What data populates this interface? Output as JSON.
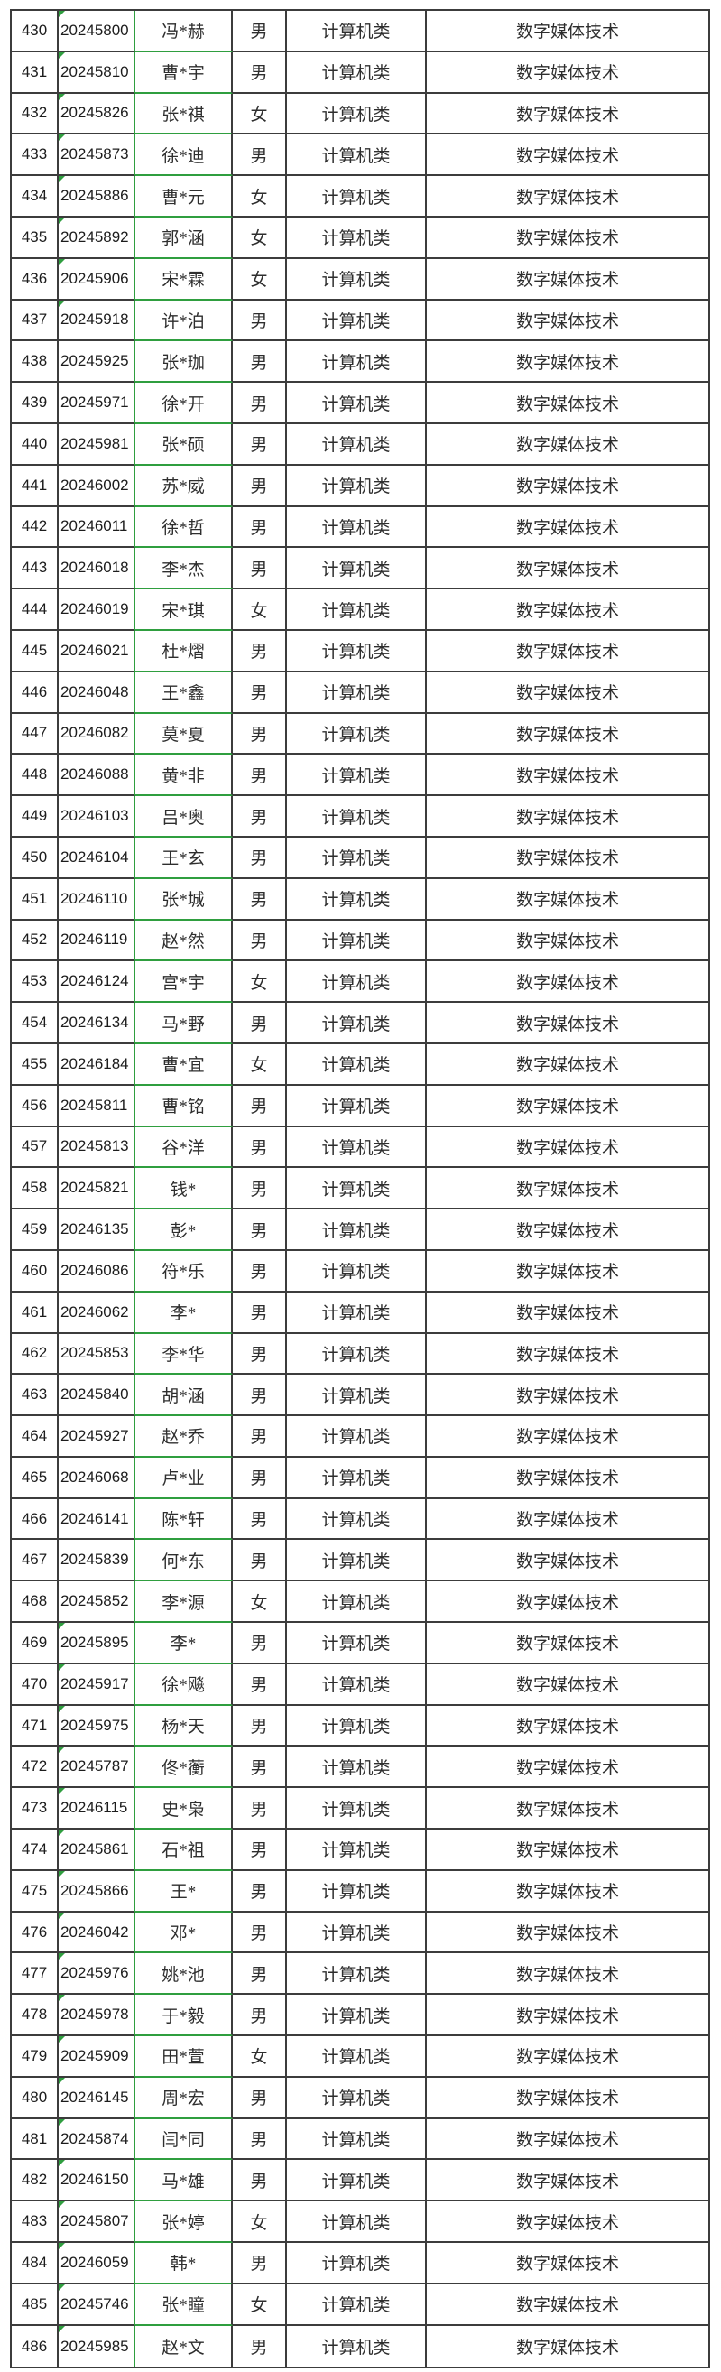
{
  "colors": {
    "grid_line": "#3c3c3c",
    "accent_green": "#2f9e3f",
    "number_text": "#1c1c1c",
    "cjk_text": "#2e2e2e",
    "background": "#ffffff"
  },
  "table": {
    "category_value": "计算机类",
    "major_value": "数字媒体技术",
    "rows": [
      {
        "no": "430",
        "id": "20245800",
        "name": "冯*赫",
        "gender": "男",
        "category": "计算机类",
        "major": "数字媒体技术",
        "id_flag": true
      },
      {
        "no": "431",
        "id": "20245810",
        "name": "曹*宇",
        "gender": "男",
        "category": "计算机类",
        "major": "数字媒体技术",
        "id_flag": true
      },
      {
        "no": "432",
        "id": "20245826",
        "name": "张*祺",
        "gender": "女",
        "category": "计算机类",
        "major": "数字媒体技术",
        "id_flag": true
      },
      {
        "no": "433",
        "id": "20245873",
        "name": "徐*迪",
        "gender": "男",
        "category": "计算机类",
        "major": "数字媒体技术",
        "id_flag": true
      },
      {
        "no": "434",
        "id": "20245886",
        "name": "曹*元",
        "gender": "女",
        "category": "计算机类",
        "major": "数字媒体技术",
        "id_flag": true
      },
      {
        "no": "435",
        "id": "20245892",
        "name": "郭*涵",
        "gender": "女",
        "category": "计算机类",
        "major": "数字媒体技术",
        "id_flag": true
      },
      {
        "no": "436",
        "id": "20245906",
        "name": "宋*霖",
        "gender": "女",
        "category": "计算机类",
        "major": "数字媒体技术",
        "id_flag": true
      },
      {
        "no": "437",
        "id": "20245918",
        "name": "许*泊",
        "gender": "男",
        "category": "计算机类",
        "major": "数字媒体技术",
        "id_flag": true
      },
      {
        "no": "438",
        "id": "20245925",
        "name": "张*珈",
        "gender": "男",
        "category": "计算机类",
        "major": "数字媒体技术",
        "id_flag": false
      },
      {
        "no": "439",
        "id": "20245971",
        "name": "徐*开",
        "gender": "男",
        "category": "计算机类",
        "major": "数字媒体技术",
        "id_flag": false
      },
      {
        "no": "440",
        "id": "20245981",
        "name": "张*硕",
        "gender": "男",
        "category": "计算机类",
        "major": "数字媒体技术",
        "id_flag": false
      },
      {
        "no": "441",
        "id": "20246002",
        "name": "苏*威",
        "gender": "男",
        "category": "计算机类",
        "major": "数字媒体技术",
        "id_flag": false
      },
      {
        "no": "442",
        "id": "20246011",
        "name": "徐*哲",
        "gender": "男",
        "category": "计算机类",
        "major": "数字媒体技术",
        "id_flag": false
      },
      {
        "no": "443",
        "id": "20246018",
        "name": "李*杰",
        "gender": "男",
        "category": "计算机类",
        "major": "数字媒体技术",
        "id_flag": false
      },
      {
        "no": "444",
        "id": "20246019",
        "name": "宋*琪",
        "gender": "女",
        "category": "计算机类",
        "major": "数字媒体技术",
        "id_flag": false
      },
      {
        "no": "445",
        "id": "20246021",
        "name": "杜*熠",
        "gender": "男",
        "category": "计算机类",
        "major": "数字媒体技术",
        "id_flag": false
      },
      {
        "no": "446",
        "id": "20246048",
        "name": "王*鑫",
        "gender": "男",
        "category": "计算机类",
        "major": "数字媒体技术",
        "id_flag": false
      },
      {
        "no": "447",
        "id": "20246082",
        "name": "莫*夏",
        "gender": "男",
        "category": "计算机类",
        "major": "数字媒体技术",
        "id_flag": false
      },
      {
        "no": "448",
        "id": "20246088",
        "name": "黄*非",
        "gender": "男",
        "category": "计算机类",
        "major": "数字媒体技术",
        "id_flag": false
      },
      {
        "no": "449",
        "id": "20246103",
        "name": "吕*奥",
        "gender": "男",
        "category": "计算机类",
        "major": "数字媒体技术",
        "id_flag": false
      },
      {
        "no": "450",
        "id": "20246104",
        "name": "王*玄",
        "gender": "男",
        "category": "计算机类",
        "major": "数字媒体技术",
        "id_flag": false
      },
      {
        "no": "451",
        "id": "20246110",
        "name": "张*城",
        "gender": "男",
        "category": "计算机类",
        "major": "数字媒体技术",
        "id_flag": false
      },
      {
        "no": "452",
        "id": "20246119",
        "name": "赵*然",
        "gender": "男",
        "category": "计算机类",
        "major": "数字媒体技术",
        "id_flag": false
      },
      {
        "no": "453",
        "id": "20246124",
        "name": "宫*宇",
        "gender": "女",
        "category": "计算机类",
        "major": "数字媒体技术",
        "id_flag": false
      },
      {
        "no": "454",
        "id": "20246134",
        "name": "马*野",
        "gender": "男",
        "category": "计算机类",
        "major": "数字媒体技术",
        "id_flag": false
      },
      {
        "no": "455",
        "id": "20246184",
        "name": "曹*宜",
        "gender": "女",
        "category": "计算机类",
        "major": "数字媒体技术",
        "id_flag": false
      },
      {
        "no": "456",
        "id": "20245811",
        "name": "曹*铭",
        "gender": "男",
        "category": "计算机类",
        "major": "数字媒体技术",
        "id_flag": false
      },
      {
        "no": "457",
        "id": "20245813",
        "name": "谷*洋",
        "gender": "男",
        "category": "计算机类",
        "major": "数字媒体技术",
        "id_flag": false
      },
      {
        "no": "458",
        "id": "20245821",
        "name": "钱*",
        "gender": "男",
        "category": "计算机类",
        "major": "数字媒体技术",
        "id_flag": false
      },
      {
        "no": "459",
        "id": "20246135",
        "name": "彭*",
        "gender": "男",
        "category": "计算机类",
        "major": "数字媒体技术",
        "id_flag": false
      },
      {
        "no": "460",
        "id": "20246086",
        "name": "符*乐",
        "gender": "男",
        "category": "计算机类",
        "major": "数字媒体技术",
        "id_flag": false
      },
      {
        "no": "461",
        "id": "20246062",
        "name": "李*",
        "gender": "男",
        "category": "计算机类",
        "major": "数字媒体技术",
        "id_flag": false
      },
      {
        "no": "462",
        "id": "20245853",
        "name": "李*华",
        "gender": "男",
        "category": "计算机类",
        "major": "数字媒体技术",
        "id_flag": false
      },
      {
        "no": "463",
        "id": "20245840",
        "name": "胡*涵",
        "gender": "男",
        "category": "计算机类",
        "major": "数字媒体技术",
        "id_flag": false
      },
      {
        "no": "464",
        "id": "20245927",
        "name": "赵*乔",
        "gender": "男",
        "category": "计算机类",
        "major": "数字媒体技术",
        "id_flag": false
      },
      {
        "no": "465",
        "id": "20246068",
        "name": "卢*业",
        "gender": "男",
        "category": "计算机类",
        "major": "数字媒体技术",
        "id_flag": false
      },
      {
        "no": "466",
        "id": "20246141",
        "name": "陈*轩",
        "gender": "男",
        "category": "计算机类",
        "major": "数字媒体技术",
        "id_flag": false
      },
      {
        "no": "467",
        "id": "20245839",
        "name": "何*东",
        "gender": "男",
        "category": "计算机类",
        "major": "数字媒体技术",
        "id_flag": false
      },
      {
        "no": "468",
        "id": "20245852",
        "name": "李*源",
        "gender": "女",
        "category": "计算机类",
        "major": "数字媒体技术",
        "id_flag": false
      },
      {
        "no": "469",
        "id": "20245895",
        "name": "李*",
        "gender": "男",
        "category": "计算机类",
        "major": "数字媒体技术",
        "id_flag": true
      },
      {
        "no": "470",
        "id": "20245917",
        "name": "徐*飚",
        "gender": "男",
        "category": "计算机类",
        "major": "数字媒体技术",
        "id_flag": true
      },
      {
        "no": "471",
        "id": "20245975",
        "name": "杨*天",
        "gender": "男",
        "category": "计算机类",
        "major": "数字媒体技术",
        "id_flag": true
      },
      {
        "no": "472",
        "id": "20245787",
        "name": "佟*蘅",
        "gender": "男",
        "category": "计算机类",
        "major": "数字媒体技术",
        "id_flag": true
      },
      {
        "no": "473",
        "id": "20246115",
        "name": "史*枭",
        "gender": "男",
        "category": "计算机类",
        "major": "数字媒体技术",
        "id_flag": true
      },
      {
        "no": "474",
        "id": "20245861",
        "name": "石*祖",
        "gender": "男",
        "category": "计算机类",
        "major": "数字媒体技术",
        "id_flag": true
      },
      {
        "no": "475",
        "id": "20245866",
        "name": "王*",
        "gender": "男",
        "category": "计算机类",
        "major": "数字媒体技术",
        "id_flag": true
      },
      {
        "no": "476",
        "id": "20246042",
        "name": "邓*",
        "gender": "男",
        "category": "计算机类",
        "major": "数字媒体技术",
        "id_flag": true
      },
      {
        "no": "477",
        "id": "20245976",
        "name": "姚*池",
        "gender": "男",
        "category": "计算机类",
        "major": "数字媒体技术",
        "id_flag": true
      },
      {
        "no": "478",
        "id": "20245978",
        "name": "于*毅",
        "gender": "男",
        "category": "计算机类",
        "major": "数字媒体技术",
        "id_flag": true
      },
      {
        "no": "479",
        "id": "20245909",
        "name": "田*萱",
        "gender": "女",
        "category": "计算机类",
        "major": "数字媒体技术",
        "id_flag": true
      },
      {
        "no": "480",
        "id": "20246145",
        "name": "周*宏",
        "gender": "男",
        "category": "计算机类",
        "major": "数字媒体技术",
        "id_flag": true
      },
      {
        "no": "481",
        "id": "20245874",
        "name": "闫*同",
        "gender": "男",
        "category": "计算机类",
        "major": "数字媒体技术",
        "id_flag": true
      },
      {
        "no": "482",
        "id": "20246150",
        "name": "马*雄",
        "gender": "男",
        "category": "计算机类",
        "major": "数字媒体技术",
        "id_flag": true
      },
      {
        "no": "483",
        "id": "20245807",
        "name": "张*婷",
        "gender": "女",
        "category": "计算机类",
        "major": "数字媒体技术",
        "id_flag": true
      },
      {
        "no": "484",
        "id": "20246059",
        "name": "韩*",
        "gender": "男",
        "category": "计算机类",
        "major": "数字媒体技术",
        "id_flag": true
      },
      {
        "no": "485",
        "id": "20245746",
        "name": "张*瞳",
        "gender": "女",
        "category": "计算机类",
        "major": "数字媒体技术",
        "id_flag": true
      },
      {
        "no": "486",
        "id": "20245985",
        "name": "赵*文",
        "gender": "男",
        "category": "计算机类",
        "major": "数字媒体技术",
        "id_flag": true
      }
    ]
  }
}
